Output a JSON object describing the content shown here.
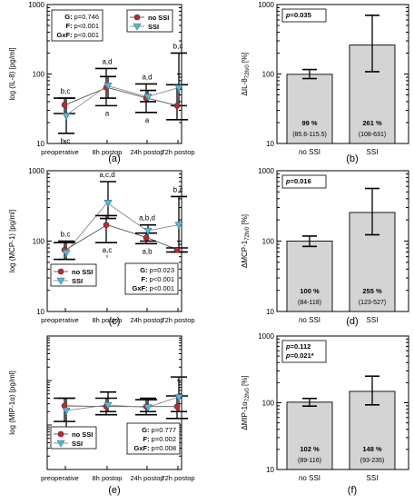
{
  "panels_left_x": [
    "preoperative",
    "8h postop",
    "24h postop",
    "72h postop"
  ],
  "panels_right_x": [
    "no SSI",
    "SSI"
  ],
  "legend_labels": [
    "no SSI",
    "SSI"
  ],
  "colors": {
    "nossi_marker": "#c0282d",
    "ssi_marker": "#55b7d6",
    "bar_fill": "#d4d4d4",
    "sig_green": "#2f9a3c"
  },
  "chart_data": [
    {
      "id": "a",
      "type": "line",
      "panel_label": "(a)",
      "scale": "log",
      "ylabel": "log (IL-8) [pg/ml]",
      "ylim": [
        10,
        1000
      ],
      "yticks": [
        "10",
        "100",
        "1000"
      ],
      "stats": [
        "G: p=0.746",
        "F: p<0.001",
        "GxF: p<0.001"
      ],
      "series": [
        {
          "name": "no SSI",
          "values": [
            36,
            64,
            45,
            35
          ],
          "err_lo": [
            27,
            35,
            28,
            22
          ],
          "err_hi": [
            45,
            120,
            72,
            70
          ]
        },
        {
          "name": "SSI",
          "values": [
            25,
            68,
            47,
            63
          ],
          "err_lo": [
            14,
            45,
            40,
            35
          ],
          "err_hi": [
            45,
            92,
            58,
            200
          ]
        }
      ],
      "annotations": [
        {
          "x": 0,
          "text": "b,c",
          "pos": "above"
        },
        {
          "x": 0,
          "text": "b,c",
          "pos": "below"
        },
        {
          "x": 1,
          "text": "a,d",
          "pos": "above"
        },
        {
          "x": 1,
          "text": "a",
          "pos": "below"
        },
        {
          "x": 2,
          "text": "a,d",
          "pos": "above"
        },
        {
          "x": 2,
          "text": "a",
          "pos": "below"
        },
        {
          "x": 3,
          "text": "b,c",
          "pos": "above"
        }
      ]
    },
    {
      "id": "b",
      "type": "bar",
      "panel_label": "(b)",
      "scale": "log",
      "ylabel": "ΔIL-8 72h/0 [%]",
      "ylim": [
        10,
        1000
      ],
      "yticks": [
        "10",
        "100",
        "1000"
      ],
      "p_text": [
        "p=0.035"
      ],
      "categories": [
        "no SSI",
        "SSI"
      ],
      "values": [
        99,
        261
      ],
      "err_lo": [
        86,
        108
      ],
      "err_hi": [
        116,
        700
      ],
      "value_labels": [
        "99 %",
        "261 %"
      ],
      "ci_labels": [
        "(85.6-115.5)",
        "(108-631)"
      ]
    },
    {
      "id": "c",
      "type": "line",
      "panel_label": "(c)",
      "scale": "log",
      "ylabel": "log (MCP-1) [pg/ml]",
      "ylim": [
        10,
        1000
      ],
      "yticks": [
        "10",
        "100",
        "1000"
      ],
      "stats": [
        "G: p=0.023",
        "F: p<0.001",
        "GxF: p<0.001"
      ],
      "series": [
        {
          "name": "no SSI",
          "values": [
            75,
            170,
            112,
            75
          ],
          "err_lo": [
            55,
            95,
            92,
            70
          ],
          "err_hi": [
            95,
            230,
            130,
            80
          ]
        },
        {
          "name": "SSI",
          "values": [
            68,
            350,
            140,
            170
          ],
          "err_lo": [
            55,
            210,
            100,
            70
          ],
          "err_hi": [
            100,
            700,
            170,
            430
          ]
        }
      ],
      "annotations": [
        {
          "x": 0,
          "text": "b,c",
          "pos": "above"
        },
        {
          "x": 0,
          "text": "b,c",
          "pos": "below"
        },
        {
          "x": 1,
          "text": "a,c,d",
          "pos": "above"
        },
        {
          "x": 1,
          "text": "a,c",
          "pos": "below"
        },
        {
          "x": 2,
          "text": "a,b,d",
          "pos": "above"
        },
        {
          "x": 2,
          "text": "a,b",
          "pos": "below"
        },
        {
          "x": 3,
          "text": "b,c",
          "pos": "above"
        }
      ],
      "star": {
        "x": 1,
        "text": "*"
      }
    },
    {
      "id": "d",
      "type": "bar",
      "panel_label": "(d)",
      "scale": "log",
      "ylabel": "ΔMCP-1 72h/0 [%]",
      "ylim": [
        10,
        1000
      ],
      "yticks": [
        "10",
        "100",
        "1000"
      ],
      "p_text": [
        "p=0.016"
      ],
      "categories": [
        "no SSI",
        "SSI"
      ],
      "values": [
        100,
        255
      ],
      "err_lo": [
        84,
        123
      ],
      "err_hi": [
        118,
        560
      ],
      "value_labels": [
        "100 %",
        "255 %"
      ],
      "ci_labels": [
        "(84-118)",
        "(123-527)"
      ]
    },
    {
      "id": "e",
      "type": "line",
      "panel_label": "(e)",
      "scale": "log",
      "ylabel": "log (MIP-1α) [pg/ml]",
      "ylim": [
        1,
        1000
      ],
      "stats": [
        "G: p=0.777",
        "F: p=0.002",
        "GxF: p=0.008"
      ],
      "series": [
        {
          "name": "no SSI",
          "values": [
            27,
            26,
            26,
            26
          ],
          "err_lo": [
            12,
            17,
            17,
            14
          ],
          "err_hi": [
            40,
            40,
            37,
            45
          ]
        },
        {
          "name": "SSI",
          "values": [
            21,
            28,
            25,
            42
          ],
          "err_lo": [
            8,
            20,
            20,
            20
          ],
          "err_hi": [
            40,
            55,
            40,
            120
          ]
        }
      ]
    },
    {
      "id": "f",
      "type": "bar",
      "panel_label": "(f)",
      "scale": "log",
      "ylabel": "ΔMIP-1α 72h/0 [%]",
      "ylim": [
        10,
        1000
      ],
      "yticks": [
        "10",
        "100",
        "1000"
      ],
      "p_text": [
        "p=0.112",
        "p=0.021*"
      ],
      "categories": [
        "no SSI",
        "SSI"
      ],
      "values": [
        102,
        148
      ],
      "err_lo": [
        89,
        93
      ],
      "err_hi": [
        116,
        250
      ],
      "value_labels": [
        "102 %",
        "148 %"
      ],
      "ci_labels": [
        "(89-116)",
        "(93-235)"
      ]
    }
  ]
}
